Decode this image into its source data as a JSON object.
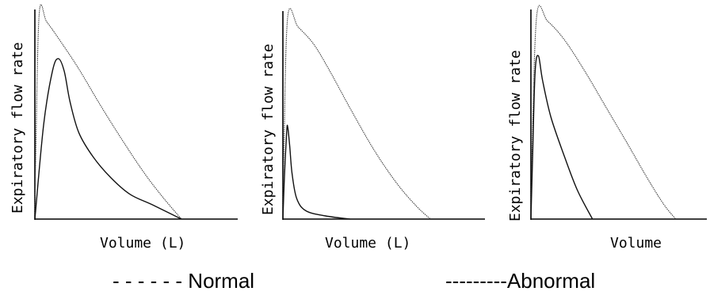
{
  "chart_data": [
    {
      "type": "line",
      "ylabel": "Expiratory flow rate",
      "xlabel": "Volume (L)",
      "series": [
        {
          "role": "normal",
          "points": [
            [
              0,
              0
            ],
            [
              0.006,
              0.3
            ],
            [
              0.03,
              1.0
            ],
            [
              0.08,
              0.96
            ],
            [
              0.16,
              0.88
            ],
            [
              0.3,
              0.73
            ],
            [
              0.45,
              0.55
            ],
            [
              0.6,
              0.38
            ],
            [
              0.75,
              0.22
            ],
            [
              0.88,
              0.1
            ],
            [
              1.0,
              0
            ]
          ]
        },
        {
          "role": "abnormal",
          "points": [
            [
              0,
              0
            ],
            [
              0.06,
              0.46
            ],
            [
              0.12,
              0.72
            ],
            [
              0.16,
              0.78
            ],
            [
              0.2,
              0.72
            ],
            [
              0.24,
              0.57
            ],
            [
              0.3,
              0.42
            ],
            [
              0.4,
              0.3
            ],
            [
              0.52,
              0.2
            ],
            [
              0.65,
              0.12
            ],
            [
              0.8,
              0.07
            ],
            [
              1.0,
              0
            ]
          ]
        }
      ]
    },
    {
      "type": "line",
      "ylabel": "Expiratory flow rate",
      "xlabel": "Volume (L)",
      "series": [
        {
          "role": "normal",
          "points": [
            [
              0,
              0
            ],
            [
              0.006,
              0.3
            ],
            [
              0.032,
              0.97
            ],
            [
              0.1,
              0.92
            ],
            [
              0.2,
              0.84
            ],
            [
              0.3,
              0.72
            ],
            [
              0.45,
              0.52
            ],
            [
              0.6,
              0.33
            ],
            [
              0.75,
              0.17
            ],
            [
              0.88,
              0.06
            ],
            [
              0.97,
              0
            ]
          ]
        },
        {
          "role": "abnormal",
          "points": [
            [
              0,
              0
            ],
            [
              0.01,
              0.2
            ],
            [
              0.025,
              0.42
            ],
            [
              0.032,
              0.44
            ],
            [
              0.045,
              0.35
            ],
            [
              0.06,
              0.22
            ],
            [
              0.09,
              0.1
            ],
            [
              0.15,
              0.04
            ],
            [
              0.28,
              0.015
            ],
            [
              0.44,
              0
            ]
          ]
        }
      ]
    },
    {
      "type": "line",
      "ylabel": "Expiratory flow rate",
      "xlabel": "Volume",
      "series": [
        {
          "role": "normal",
          "points": [
            [
              0,
              0
            ],
            [
              0.006,
              0.3
            ],
            [
              0.035,
              1.0
            ],
            [
              0.1,
              0.97
            ],
            [
              0.2,
              0.88
            ],
            [
              0.32,
              0.73
            ],
            [
              0.45,
              0.55
            ],
            [
              0.58,
              0.37
            ],
            [
              0.7,
              0.2
            ],
            [
              0.8,
              0.07
            ],
            [
              0.87,
              0
            ]
          ]
        },
        {
          "role": "abnormal",
          "points": [
            [
              0,
              0
            ],
            [
              0.01,
              0.3
            ],
            [
              0.025,
              0.72
            ],
            [
              0.045,
              0.8
            ],
            [
              0.07,
              0.68
            ],
            [
              0.12,
              0.5
            ],
            [
              0.2,
              0.31
            ],
            [
              0.28,
              0.14
            ],
            [
              0.37,
              0
            ]
          ]
        }
      ]
    }
  ],
  "legend": {
    "normal_label": "- - - - - - Normal",
    "abnormal_label": "---------Abnormal"
  }
}
